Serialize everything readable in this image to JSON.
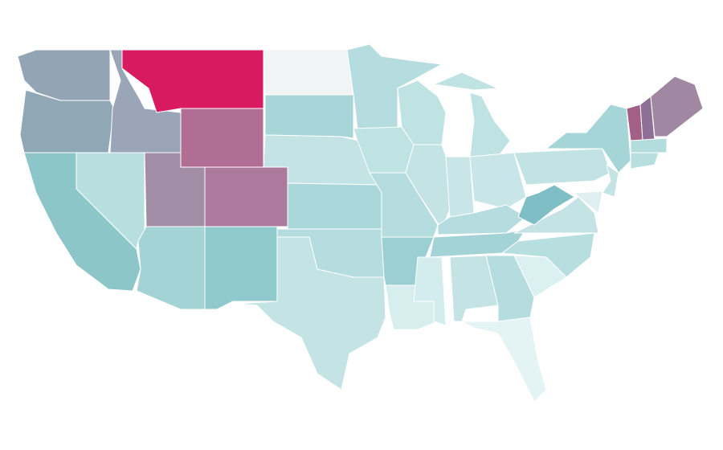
{
  "map": {
    "fills": [
      "#93a5b5",
      "#90a7b6",
      "#9aa6b8",
      "#d81b60",
      "#f2f3f5",
      "#a8d6d8",
      "#b06e94",
      "#c4e3e5",
      "#ac7a9c",
      "#a18ea6",
      "#b8dfe0",
      "#8cc6c9",
      "#a4d3d6",
      "#90cacd",
      "#aad8da",
      "#b5dcde",
      "#c4e3e5",
      "#b5dcde",
      "#bfe2e3",
      "#b5dcde",
      "#9ccfd3",
      "#d7eeef",
      "#bfe2e3",
      "#c4e3e5",
      "#d3ecee",
      "#bfe2e3",
      "#bfe2e3",
      "#c8e6e7",
      "#c8e6e7",
      "#b5dcde",
      "#a4d3d6",
      "#c4e3e5",
      "#b5dcde",
      "#e4f3f4",
      "#dbf0f1",
      "#b8dfe0",
      "#c4e3e5",
      "#7fbec4",
      "#c1e3e4",
      "#a6d5d7",
      "#c4e3e5",
      "#ddeff0",
      "#a45f87",
      "#8e6f95",
      "#a088a2",
      "#b3dcdd",
      "#b8dfe0"
    ]
  }
}
